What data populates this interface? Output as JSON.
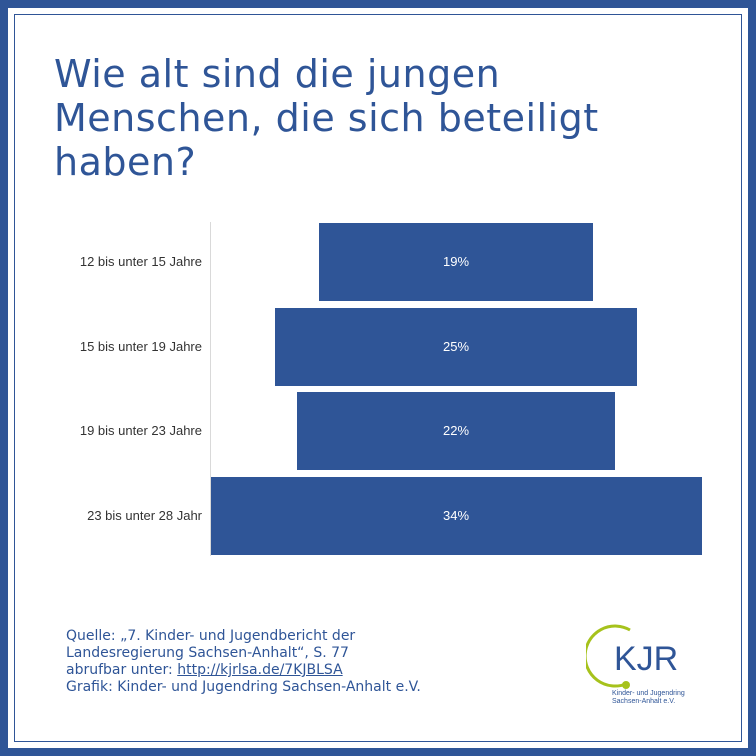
{
  "title": "Wie alt sind die jungen Menschen, die sich beteiligt haben?",
  "chart_data": {
    "type": "bar",
    "orientation": "horizontal-centered",
    "categories": [
      "12 bis unter  15 Jahre",
      "15 bis unter 19 Jahre",
      "19 bis unter 23 Jahre",
      "23 bis unter 28 Jahr"
    ],
    "values": [
      19,
      25,
      22,
      34
    ],
    "data_labels": [
      "19%",
      "25%",
      "22%",
      "34%"
    ],
    "unit": "%",
    "bar_color": "#2f5597",
    "grid": false,
    "legend": "none"
  },
  "source": {
    "line1": "Quelle: „7. Kinder- und Jugendbericht der",
    "line2": "Landesregierung Sachsen-Anhalt“, S. 77",
    "line3_prefix": "abrufbar unter: ",
    "link": "http://kjrlsa.de/7KJBLSA",
    "line4": "Grafik: Kinder- und Jugendring Sachsen-Anhalt e.V."
  },
  "logo": {
    "letters": "KJR",
    "caption_line1": "Kinder- und Jugendring",
    "caption_line2": "Sachsen-Anhalt e.V.",
    "ring_color": "#a6c21c",
    "text_color": "#2f5597"
  },
  "colors": {
    "frame": "#2f5597",
    "accent": "#2f5597"
  }
}
